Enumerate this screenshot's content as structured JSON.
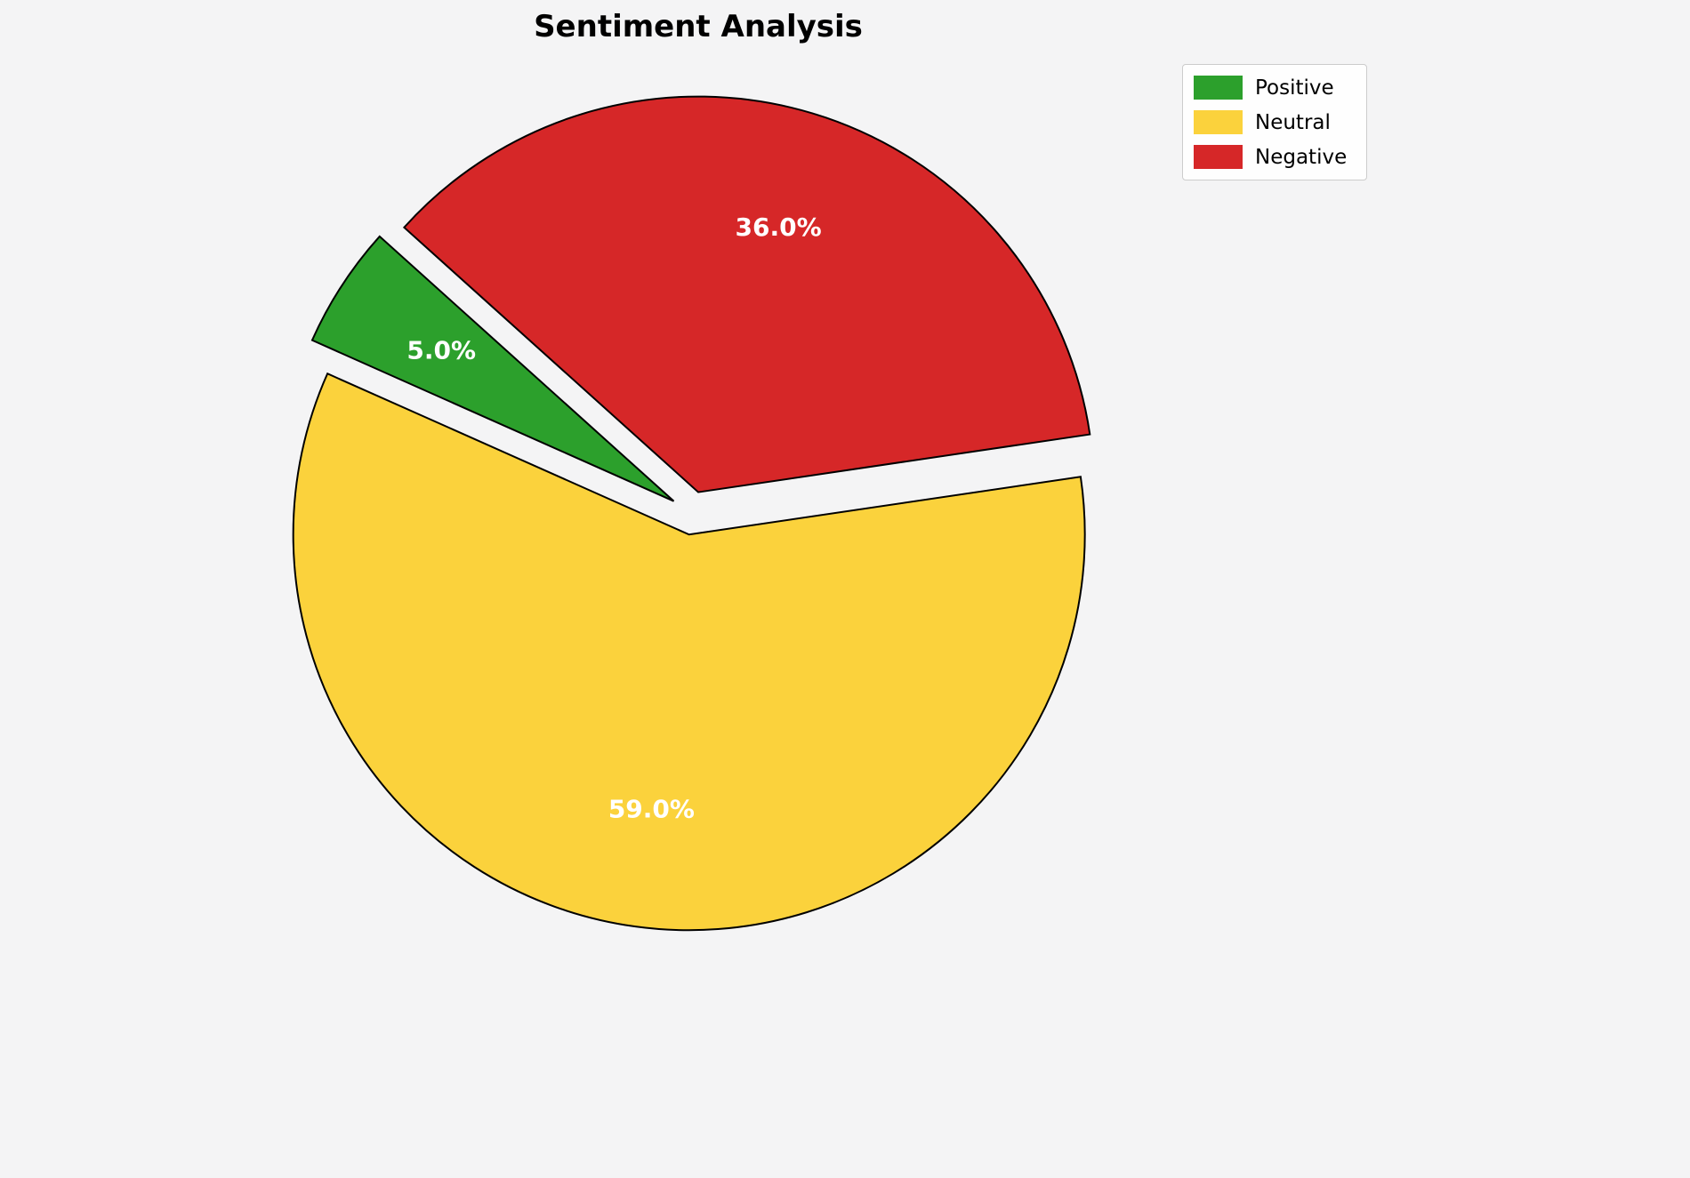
{
  "title": "Sentiment Analysis",
  "background_color": "#f4f4f5",
  "chart_data": {
    "type": "pie",
    "title": "Sentiment Analysis",
    "categories": [
      "Positive",
      "Neutral",
      "Negative"
    ],
    "values": [
      5.0,
      59.0,
      36.0
    ],
    "percent_labels": [
      "5.0%",
      "59.0%",
      "36.0%"
    ],
    "colors": [
      "#2ca02c",
      "#fbd23c",
      "#d62728"
    ],
    "start_angle_deg": 138,
    "direction": "counterclockwise",
    "explode_fraction": 0.055,
    "label_distance_fraction": 0.7,
    "slice_edge_color": "#000000",
    "percent_text_color": "#ffffff",
    "legend": {
      "position": "upper-right",
      "entries": [
        {
          "label": "Positive",
          "color": "#2ca02c"
        },
        {
          "label": "Neutral",
          "color": "#fbd23c"
        },
        {
          "label": "Negative",
          "color": "#d62728"
        }
      ]
    }
  }
}
